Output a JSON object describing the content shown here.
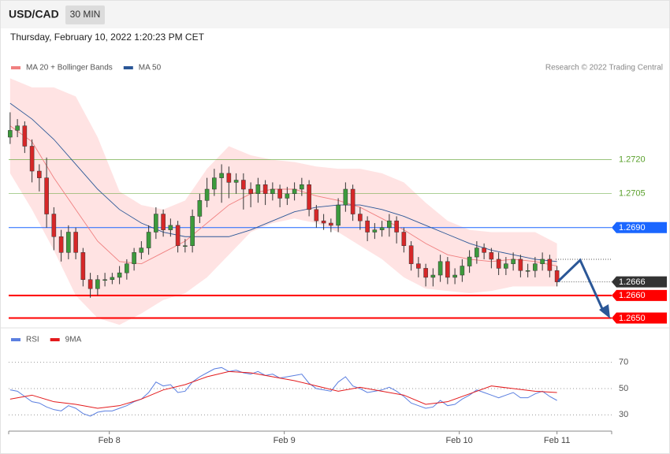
{
  "header": {
    "symbol": "USD/CAD",
    "timeframe": "30 MIN",
    "timestamp": "Thursday, February 10, 2022 1:20:23 PM CET"
  },
  "chart_data": [
    {
      "type": "candlestick",
      "source": "Research © 2022 Trading Central",
      "up_color": "#3c9a3c",
      "down_color": "#d62728",
      "xlim": [
        -0.2,
        82.5
      ],
      "ylim": [
        1.2646,
        1.2768
      ],
      "x": [
        0,
        1,
        2,
        3,
        4,
        5,
        6,
        7,
        8,
        9,
        10,
        11,
        12,
        13,
        14,
        15,
        16,
        17,
        18,
        19,
        20,
        21,
        22,
        23,
        24,
        25,
        26,
        27,
        28,
        29,
        30,
        31,
        32,
        33,
        34,
        35,
        36,
        37,
        38,
        39,
        40,
        41,
        42,
        43,
        44,
        45,
        46,
        47,
        48,
        49,
        50,
        51,
        52,
        53,
        54,
        55,
        56,
        57,
        58,
        59,
        60,
        61,
        62,
        63,
        64,
        65,
        66,
        67,
        68,
        69,
        70,
        71,
        72,
        73,
        74,
        75
      ],
      "open": [
        1.273,
        1.2733,
        1.2735,
        1.2726,
        1.2715,
        1.2712,
        1.2696,
        1.2686,
        1.2679,
        1.2688,
        1.2679,
        1.2667,
        1.2663,
        1.2667,
        1.2667,
        1.2668,
        1.267,
        1.2674,
        1.2679,
        1.2681,
        1.2688,
        1.2696,
        1.2689,
        1.2691,
        1.2682,
        1.2682,
        1.2695,
        1.2702,
        1.2707,
        1.2712,
        1.2714,
        1.271,
        1.2711,
        1.2707,
        1.2705,
        1.2709,
        1.2705,
        1.2707,
        1.2703,
        1.2705,
        1.2707,
        1.2709,
        1.2698,
        1.2693,
        1.2692,
        1.2691,
        1.27,
        1.2707,
        1.2696,
        1.2693,
        1.2688,
        1.2689,
        1.269,
        1.2693,
        1.2688,
        1.2682,
        1.2674,
        1.2672,
        1.2668,
        1.2669,
        1.2675,
        1.2668,
        1.2669,
        1.2673,
        1.2677,
        1.2681,
        1.2679,
        1.2676,
        1.2672,
        1.2674,
        1.2676,
        1.2671,
        1.2671,
        1.2674,
        1.2676,
        1.2671
      ],
      "high": [
        1.2741,
        1.2738,
        1.2737,
        1.2729,
        1.2718,
        1.2721,
        1.2699,
        1.2689,
        1.2691,
        1.269,
        1.2681,
        1.267,
        1.2669,
        1.267,
        1.267,
        1.2673,
        1.2676,
        1.2681,
        1.2684,
        1.2691,
        1.2699,
        1.2698,
        1.2694,
        1.2693,
        1.2685,
        1.2698,
        1.2705,
        1.2712,
        1.2716,
        1.2718,
        1.2717,
        1.2714,
        1.2714,
        1.271,
        1.2712,
        1.2711,
        1.271,
        1.2709,
        1.2708,
        1.271,
        1.2712,
        1.2711,
        1.27,
        1.2696,
        1.2694,
        1.2703,
        1.271,
        1.2709,
        1.2699,
        1.2695,
        1.2692,
        1.2693,
        1.2696,
        1.2695,
        1.269,
        1.2684,
        1.2677,
        1.2674,
        1.2672,
        1.2678,
        1.2677,
        1.2672,
        1.2676,
        1.268,
        1.2684,
        1.2683,
        1.2681,
        1.2679,
        1.2677,
        1.2679,
        1.2678,
        1.2674,
        1.2677,
        1.2679,
        1.2678,
        1.2673
      ],
      "low": [
        1.2727,
        1.273,
        1.2723,
        1.271,
        1.2706,
        1.269,
        1.268,
        1.2675,
        1.2676,
        1.2676,
        1.2664,
        1.2659,
        1.266,
        1.2664,
        1.2665,
        1.2665,
        1.2667,
        1.2671,
        1.2676,
        1.2678,
        1.2685,
        1.2686,
        1.2686,
        1.2679,
        1.2679,
        1.2679,
        1.2692,
        1.2699,
        1.2704,
        1.2701,
        1.2703,
        1.2705,
        1.2698,
        1.2699,
        1.2701,
        1.27,
        1.2702,
        1.2699,
        1.27,
        1.2702,
        1.2704,
        1.2695,
        1.269,
        1.2689,
        1.2688,
        1.2688,
        1.2697,
        1.2693,
        1.2689,
        1.2684,
        1.2685,
        1.2686,
        1.2686,
        1.2683,
        1.2679,
        1.2671,
        1.2668,
        1.2664,
        1.2664,
        1.2666,
        1.2665,
        1.2665,
        1.2666,
        1.267,
        1.2674,
        1.2676,
        1.2672,
        1.2669,
        1.2669,
        1.2671,
        1.2668,
        1.2668,
        1.2668,
        1.2671,
        1.2668,
        1.2664
      ],
      "close": [
        1.2733,
        1.2735,
        1.2726,
        1.2715,
        1.2712,
        1.2696,
        1.2686,
        1.2679,
        1.2688,
        1.2679,
        1.2667,
        1.2663,
        1.2667,
        1.2667,
        1.2668,
        1.267,
        1.2674,
        1.2679,
        1.2681,
        1.2688,
        1.2696,
        1.2689,
        1.2691,
        1.2682,
        1.2682,
        1.2695,
        1.2702,
        1.2707,
        1.2712,
        1.2714,
        1.271,
        1.2711,
        1.2707,
        1.2705,
        1.2709,
        1.2705,
        1.2707,
        1.2703,
        1.2705,
        1.2707,
        1.2709,
        1.2698,
        1.2693,
        1.2692,
        1.2691,
        1.27,
        1.2707,
        1.2696,
        1.2693,
        1.2688,
        1.2689,
        1.269,
        1.2693,
        1.2688,
        1.2682,
        1.2674,
        1.2672,
        1.2668,
        1.2669,
        1.2675,
        1.2668,
        1.2669,
        1.2673,
        1.2677,
        1.2681,
        1.2679,
        1.2676,
        1.2672,
        1.2674,
        1.2676,
        1.2671,
        1.2671,
        1.2674,
        1.2676,
        1.2671,
        1.2666
      ],
      "series": [
        {
          "name": "MA 20 + Bollinger Bands",
          "color": "#f08080",
          "band_color": "#ffe3e3",
          "x": [
            0,
            3,
            6,
            9,
            12,
            15,
            18,
            21,
            24,
            27,
            30,
            33,
            36,
            39,
            42,
            45,
            48,
            51,
            54,
            57,
            60,
            63,
            66,
            69,
            72,
            75
          ],
          "values": [
            1.2735,
            1.2728,
            1.2712,
            1.2698,
            1.2684,
            1.2675,
            1.2674,
            1.2679,
            1.2684,
            1.2692,
            1.27,
            1.2705,
            1.2707,
            1.2707,
            1.2704,
            1.2702,
            1.2699,
            1.2694,
            1.2689,
            1.2683,
            1.2678,
            1.2676,
            1.2675,
            1.2676,
            1.2675,
            1.2673
          ],
          "upper": [
            1.2756,
            1.2752,
            1.2752,
            1.2748,
            1.273,
            1.2706,
            1.27,
            1.2698,
            1.2702,
            1.2716,
            1.2726,
            1.2722,
            1.272,
            1.2719,
            1.2717,
            1.2716,
            1.2716,
            1.2714,
            1.271,
            1.2701,
            1.2693,
            1.2689,
            1.2688,
            1.2688,
            1.2688,
            1.2683
          ],
          "lower": [
            1.2714,
            1.2698,
            1.268,
            1.266,
            1.265,
            1.2647,
            1.2652,
            1.2658,
            1.2661,
            1.2668,
            1.2678,
            1.2688,
            1.2692,
            1.2694,
            1.2692,
            1.2688,
            1.2682,
            1.2676,
            1.2668,
            1.2663,
            1.2662,
            1.2661,
            1.2662,
            1.2664,
            1.2664,
            1.2664
          ]
        },
        {
          "name": "MA 50",
          "color": "#2b5797",
          "x": [
            0,
            3,
            6,
            9,
            12,
            15,
            18,
            21,
            24,
            27,
            30,
            33,
            36,
            39,
            42,
            45,
            48,
            51,
            54,
            57,
            60,
            63,
            66,
            69,
            72,
            75
          ],
          "values": [
            1.2745,
            1.2738,
            1.2729,
            1.2718,
            1.2707,
            1.2698,
            1.2692,
            1.2688,
            1.2686,
            1.2686,
            1.2686,
            1.2689,
            1.2693,
            1.2697,
            1.2699,
            1.27,
            1.27,
            1.2698,
            1.2695,
            1.2691,
            1.2687,
            1.2683,
            1.268,
            1.2678,
            1.2676,
            1.2675
          ]
        }
      ],
      "levels": [
        {
          "value": 1.272,
          "label": "1.2720",
          "color": "#5aa02c",
          "style": "thin"
        },
        {
          "value": 1.2705,
          "label": "1.2705",
          "color": "#5aa02c",
          "style": "thin"
        },
        {
          "value": 1.269,
          "label": "1.2690",
          "color": "#1a66ff",
          "style": "tag"
        },
        {
          "value": 1.2666,
          "label": "1.2666",
          "color": "#333333",
          "style": "current"
        },
        {
          "value": 1.266,
          "label": "1.2660",
          "color": "#ff0000",
          "style": "thick"
        },
        {
          "value": 1.265,
          "label": "1.2650",
          "color": "#ff0000",
          "style": "thick"
        }
      ]
    },
    {
      "type": "line",
      "xlim": [
        -0.2,
        82.5
      ],
      "ylim": [
        20,
        80
      ],
      "yticks": [
        30,
        50,
        70
      ],
      "grid": true,
      "xticks": [
        {
          "value": 13.6,
          "label": "Feb 8"
        },
        {
          "value": 37.6,
          "label": "Feb 9"
        },
        {
          "value": 61.6,
          "label": "Feb 10"
        },
        {
          "value": 75,
          "label": "Feb 11"
        }
      ],
      "series": [
        {
          "name": "RSI",
          "color": "#5b7fe0",
          "x": [
            0,
            1,
            2,
            3,
            4,
            5,
            6,
            7,
            8,
            9,
            10,
            11,
            12,
            13,
            14,
            15,
            16,
            17,
            18,
            19,
            20,
            21,
            22,
            23,
            24,
            25,
            26,
            27,
            28,
            29,
            30,
            31,
            32,
            33,
            34,
            35,
            36,
            37,
            38,
            39,
            40,
            41,
            42,
            43,
            44,
            45,
            46,
            47,
            48,
            49,
            50,
            51,
            52,
            53,
            54,
            55,
            56,
            57,
            58,
            59,
            60,
            61,
            62,
            63,
            64,
            65,
            66,
            67,
            68,
            69,
            70,
            71,
            72,
            73,
            74,
            75
          ],
          "values": [
            49,
            48,
            44,
            40,
            39,
            36,
            34,
            33,
            37,
            35,
            31,
            29,
            32,
            33,
            33,
            35,
            37,
            40,
            42,
            47,
            55,
            52,
            53,
            47,
            48,
            55,
            59,
            62,
            65,
            66,
            63,
            64,
            62,
            61,
            63,
            60,
            61,
            58,
            59,
            60,
            61,
            54,
            50,
            49,
            48,
            55,
            59,
            52,
            50,
            47,
            48,
            49,
            51,
            48,
            44,
            39,
            37,
            35,
            36,
            41,
            37,
            38,
            42,
            45,
            49,
            47,
            45,
            43,
            45,
            47,
            43,
            43,
            46,
            48,
            44,
            41
          ]
        },
        {
          "name": "9MA",
          "color": "#e31a1c",
          "x": [
            0,
            3,
            6,
            9,
            12,
            15,
            18,
            21,
            24,
            27,
            30,
            33,
            36,
            39,
            42,
            45,
            48,
            51,
            54,
            57,
            60,
            63,
            66,
            69,
            72,
            75
          ],
          "values": [
            42,
            45,
            40,
            38,
            35,
            37,
            42,
            49,
            53,
            59,
            63,
            62,
            59,
            56,
            52,
            48,
            51,
            48,
            45,
            38,
            40,
            46,
            52,
            50,
            48,
            47
          ]
        }
      ]
    }
  ]
}
